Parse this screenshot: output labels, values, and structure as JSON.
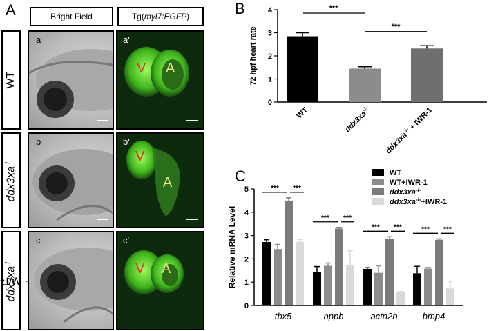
{
  "panels": {
    "A": "A",
    "B": "B",
    "C": "C"
  },
  "headers": {
    "bright": "Bright Field",
    "tg_prefix": "Tg(",
    "tg_italic": "myl7:EGFP",
    "tg_suffix": ")"
  },
  "rows": [
    {
      "label": "WT",
      "sub_bf": "a",
      "sub_fl": "a'"
    },
    {
      "label_italic": "ddx3xa",
      "label_sup": "-/-",
      "sub_bf": "b",
      "sub_fl": "b'"
    },
    {
      "label_italic": "ddx3xa",
      "label_sup": "-/-",
      "label_suffix": " + IWR-1",
      "sub_bf": "c",
      "sub_fl": "c'"
    }
  ],
  "chamber_labels": {
    "ventricle": "V",
    "atrium": "A"
  },
  "chart_data": [
    {
      "type": "bar",
      "ylabel": "72 hpf heart rate",
      "ylim": [
        0,
        4
      ],
      "yticks": [
        0,
        1,
        2,
        3,
        4
      ],
      "categories": [
        "WT",
        "ddx3xa-/-",
        "ddx3xa-/- + IWR-1"
      ],
      "category_display": [
        {
          "text": "WT"
        },
        {
          "italic": "ddx3xa",
          "sup": "-/-"
        },
        {
          "italic": "ddx3xa",
          "sup": "-/-",
          "suffix": " + IWR-1"
        }
      ],
      "values": [
        2.85,
        1.45,
        2.32
      ],
      "errors": [
        0.15,
        0.08,
        0.12
      ],
      "colors": [
        "#000000",
        "#8c8c8c",
        "#6f6f6f"
      ],
      "significance": [
        {
          "from": 0,
          "to": 1,
          "label": "***",
          "y": 3.85
        },
        {
          "from": 1,
          "to": 2,
          "label": "***",
          "y": 3.05
        }
      ]
    },
    {
      "type": "bar",
      "ylabel": "Relative mRNA Level",
      "ylim": [
        0,
        5
      ],
      "yticks": [
        0,
        1,
        2,
        3,
        4,
        5
      ],
      "categories": [
        "tbx5",
        "nppb",
        "actn2b",
        "bmp4"
      ],
      "series": [
        {
          "name": "WT",
          "values": [
            2.72,
            1.42,
            1.57,
            1.38
          ],
          "errors": [
            0.1,
            0.25,
            0.05,
            0.3
          ],
          "color": "#000000"
        },
        {
          "name": "WT+IWR-1",
          "values": [
            2.42,
            1.7,
            1.4,
            1.58
          ],
          "errors": [
            0.2,
            0.12,
            0.3,
            0.05
          ],
          "color": "#8c8c8c"
        },
        {
          "name_italic": "ddx3xa",
          "name_sup": "-/-",
          "values": [
            4.5,
            3.3,
            2.85,
            2.82
          ],
          "errors": [
            0.12,
            0.05,
            0.1,
            0.04
          ],
          "color": "#7a7a7a"
        },
        {
          "name_italic": "ddx3xa",
          "name_sup": "-/-",
          "name_suffix": "+IWR-1",
          "values": [
            2.73,
            1.75,
            0.57,
            0.73
          ],
          "errors": [
            0.1,
            0.6,
            0.03,
            0.3
          ],
          "color": "#d9d9d9"
        }
      ],
      "significance_label": "***"
    }
  ]
}
